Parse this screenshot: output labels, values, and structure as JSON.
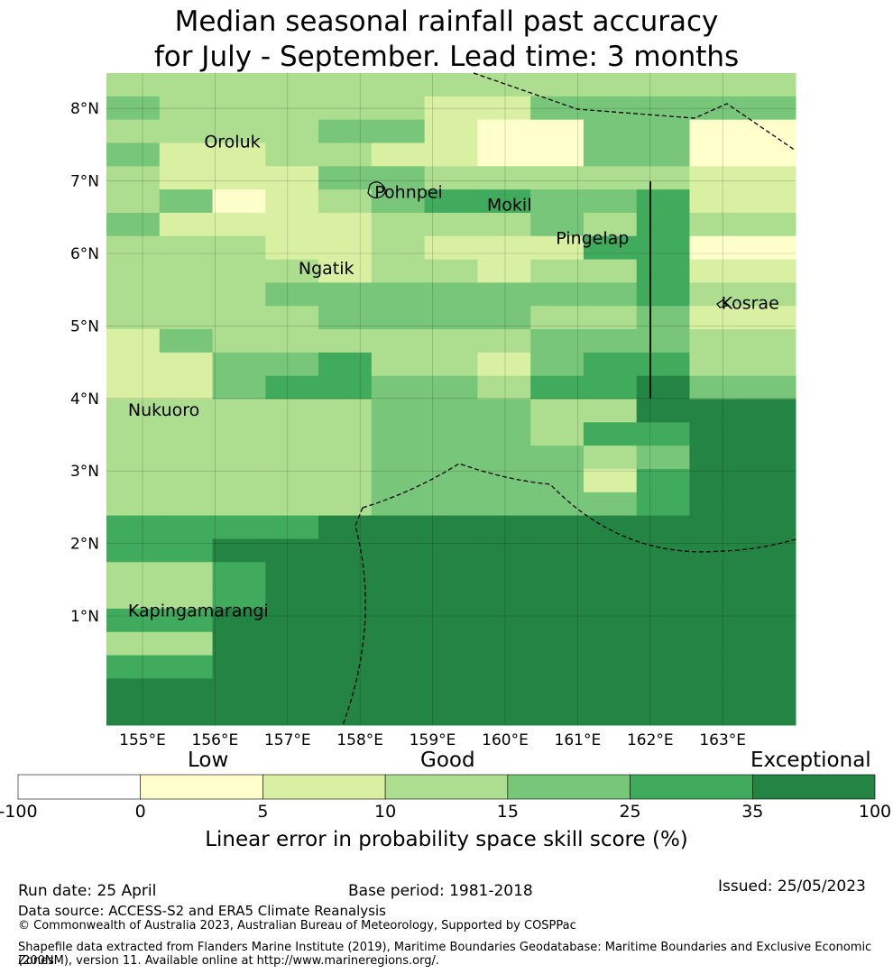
{
  "title": {
    "line1": "Median seasonal rainfall past accuracy",
    "line2": "for July - September. Lead time: 3 months"
  },
  "map": {
    "lon_ticks": [
      "155°E",
      "156°E",
      "157°E",
      "158°E",
      "159°E",
      "160°E",
      "161°E",
      "162°E",
      "163°E"
    ],
    "lat_ticks": [
      "8°N",
      "7°N",
      "6°N",
      "5°N",
      "4°N",
      "3°N",
      "2°N",
      "1°N"
    ],
    "places": [
      {
        "name": "Oroluk",
        "lon": 155.85,
        "lat": 7.55
      },
      {
        "name": "Pohnpei",
        "lon": 158.2,
        "lat": 6.85
      },
      {
        "name": "Mokil",
        "lon": 159.75,
        "lat": 6.68
      },
      {
        "name": "Pingelap",
        "lon": 160.7,
        "lat": 6.22
      },
      {
        "name": "Ngatik",
        "lon": 157.15,
        "lat": 5.8
      },
      {
        "name": "Kosrae",
        "lon": 162.98,
        "lat": 5.32
      },
      {
        "name": "Nukuoro",
        "lon": 154.8,
        "lat": 3.85
      },
      {
        "name": "Kapingamarangi",
        "lon": 154.8,
        "lat": 1.08
      }
    ],
    "grid_rows": [
      "?????????????",
      "43333322444??",
      "33334421144?1",
      "42233221144?1",
      "32224433333?2",
      "34123455445?2",
      "42222333435?3",
      "33322322255?1",
      "33332332335?2",
      "33344444445?3",
      "33334444334?2",
      "24333333444?3",
      "22445332455?3",
      "22455443556?4",
      "33333444336?6",
      "33333444355?6",
      "33333444434?6",
      "33333444425?6",
      "33333444445?6",
      "55556666666?6",
      "55666666666?6",
      "33566666666?6",
      "33566666666?6",
      "55666666666?6",
      "33666666666?6",
      "55666666666?6",
      "66666666666?6",
      "66666666666?6"
    ]
  },
  "colorbar": {
    "categories": [
      "Low",
      "Good",
      "Exceptional"
    ],
    "ticks": [
      "-100",
      "0",
      "5",
      "10",
      "15",
      "25",
      "35",
      "100"
    ],
    "colors": [
      "#ffffff",
      "#ffffcc",
      "#d9f0a3",
      "#addd8e",
      "#78c679",
      "#41ab5d",
      "#238443"
    ],
    "label": "Linear error in probability space skill score (%)"
  },
  "footer": {
    "run_date": "Run date: 25 April",
    "base_period": "Base period: 1981-2018",
    "issued": "Issued: 25/05/2023",
    "data_source": "Data source: ACCESS-S2 and ERA5 Climate Reanalysis",
    "copyright": "© Commonwealth of Australia 2023, Australian Bureau of Meteorology, Supported by COSPPac",
    "shapefile_line1": "Shapefile data extracted from Flanders Marine Institute (2019), Maritime Boundaries Geodatabase: Maritime Boundaries and Exclusive Economic Zones",
    "shapefile_line2": "(200NM), version 11. Available online at http://www.marineregions.org/."
  }
}
